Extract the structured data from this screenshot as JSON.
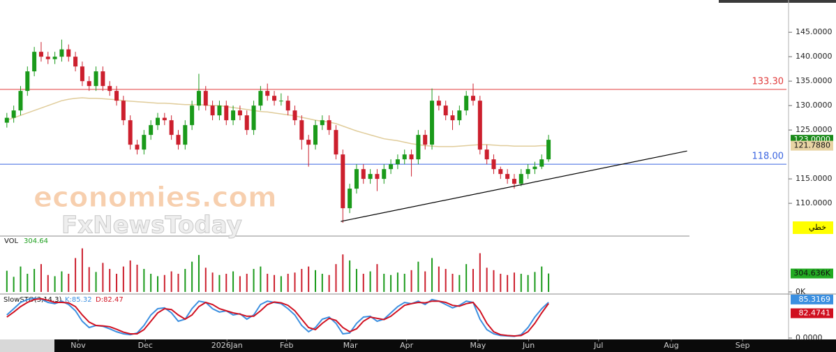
{
  "chart_data": [
    {
      "type": "candlestick",
      "x": [
        1,
        2,
        3,
        4,
        5,
        6,
        7,
        8,
        9,
        10,
        11,
        12,
        13,
        14,
        15,
        16,
        17,
        18,
        19,
        20,
        21,
        22,
        23,
        24,
        25,
        26,
        27,
        28,
        29,
        30,
        31,
        32,
        33,
        34,
        35,
        36,
        37,
        38,
        39,
        40,
        41,
        42,
        43,
        44,
        45,
        46,
        47,
        48,
        49,
        50,
        51,
        52,
        53,
        54,
        55,
        56,
        57,
        58,
        59,
        60,
        61,
        62,
        63,
        64,
        65,
        66,
        67,
        68,
        69,
        70,
        71,
        72,
        73,
        74,
        75,
        76,
        77,
        78,
        79,
        80
      ],
      "open": [
        126.5,
        127.5,
        129,
        133,
        137,
        141,
        140,
        139.5,
        140,
        141.5,
        140,
        138,
        135,
        134,
        137,
        134,
        133,
        131,
        127,
        122,
        121,
        124,
        126,
        127.5,
        127,
        124,
        122,
        126,
        130,
        133,
        130,
        128,
        130,
        127,
        129,
        128,
        125,
        130,
        133,
        132,
        131,
        131,
        129,
        127,
        123,
        122,
        126,
        127,
        125,
        120,
        109,
        113,
        117,
        115,
        116,
        115,
        117,
        118,
        119,
        120,
        119,
        124,
        122,
        131,
        130,
        128,
        127,
        129,
        132,
        131,
        121,
        119,
        117,
        116,
        115,
        114,
        116,
        117,
        117.5,
        119
      ],
      "high": [
        128.5,
        130,
        134,
        138,
        142,
        143,
        141,
        141,
        143.5,
        142.5,
        141,
        139,
        136,
        138,
        138,
        135,
        134,
        132,
        128,
        123,
        125,
        127,
        128.5,
        128.5,
        128,
        125,
        127,
        131,
        136.5,
        134,
        131,
        131,
        131,
        130,
        130,
        129,
        131,
        134,
        134.5,
        133,
        132.5,
        132,
        130,
        128,
        124,
        127,
        128,
        128,
        126,
        121,
        114,
        118,
        118,
        117,
        117,
        118,
        119,
        120,
        121,
        121,
        125,
        125,
        133.5,
        132,
        131,
        129,
        130,
        133,
        134.5,
        132,
        122,
        120,
        117.5,
        117,
        116,
        117,
        118,
        118.5,
        120,
        124
      ],
      "low": [
        125.5,
        126.5,
        128,
        132,
        136,
        139,
        138.5,
        138.5,
        139,
        139,
        137,
        134,
        133,
        133,
        133,
        132,
        130,
        126,
        121,
        120,
        120,
        123,
        125,
        126,
        123,
        121,
        121,
        125,
        129,
        129,
        127,
        127,
        126,
        126,
        127,
        124,
        124,
        129,
        131,
        130,
        130,
        128,
        126,
        121,
        117.5,
        121,
        125,
        124,
        119,
        106,
        108,
        112,
        114,
        114,
        112.5,
        114,
        116,
        117,
        118,
        115.5,
        118,
        121,
        121,
        129,
        127,
        125,
        126,
        128,
        130,
        120,
        118,
        116,
        115,
        114,
        113,
        113.5,
        115,
        116,
        117,
        118.5
      ],
      "close": [
        127.5,
        129,
        133,
        137,
        141,
        140,
        139.5,
        140,
        141.5,
        140,
        138,
        135,
        134,
        137,
        134,
        133,
        131,
        127,
        122,
        121,
        124,
        126,
        127.5,
        127,
        124,
        122,
        126,
        130,
        133,
        130,
        128,
        130,
        127,
        129,
        128,
        125,
        130,
        133,
        132,
        131,
        131,
        129,
        127,
        123,
        122,
        126,
        127,
        125,
        120,
        109,
        113,
        117,
        115,
        116,
        115,
        117,
        118,
        119,
        120,
        119,
        124,
        122,
        131,
        130,
        128,
        127,
        129,
        132,
        131,
        121,
        119,
        117,
        116,
        115,
        114,
        116,
        117,
        117.5,
        119,
        123
      ],
      "up_color": "#1a9a1a",
      "down_color": "#cc1f2d",
      "xlim": [
        0,
        115
      ],
      "xticks": [
        {
          "value": 11.4,
          "label": "Nov"
        },
        {
          "value": 21.2,
          "label": "Dec"
        },
        {
          "value": 33.1,
          "label": "2026Jan"
        },
        {
          "value": 41.8,
          "label": "Feb"
        },
        {
          "value": 51.1,
          "label": "Mar"
        },
        {
          "value": 59.3,
          "label": "Apr"
        },
        {
          "value": 69.7,
          "label": "May"
        },
        {
          "value": 77.1,
          "label": "Jun"
        },
        {
          "value": 87.3,
          "label": "Jul"
        },
        {
          "value": 97.9,
          "label": "Aug"
        },
        {
          "value": 108.3,
          "label": "Sep"
        }
      ],
      "ylim": [
        103.3,
        151.6
      ],
      "yticks": [
        {
          "value": 110,
          "label": "110.0000"
        },
        {
          "value": 115,
          "label": "115.0000"
        },
        {
          "value": 125,
          "label": "125.0000"
        },
        {
          "value": 130,
          "label": "130.0000"
        },
        {
          "value": 135,
          "label": "135.0000"
        },
        {
          "value": 140,
          "label": "140.0000"
        },
        {
          "value": 145,
          "label": "145.0000"
        }
      ],
      "moving_average": {
        "color": "#e0cc9a",
        "values": [
          127,
          127.5,
          128,
          128.5,
          129,
          129.5,
          130,
          130.5,
          131,
          131.3,
          131.5,
          131.6,
          131.5,
          131.5,
          131.4,
          131.3,
          131.2,
          131,
          130.9,
          130.8,
          130.7,
          130.6,
          130.5,
          130.5,
          130.4,
          130.3,
          130.2,
          130.2,
          130.2,
          130.1,
          130,
          130,
          129.8,
          129.6,
          129.4,
          129.2,
          129,
          128.8,
          128.7,
          128.5,
          128.3,
          128.1,
          127.9,
          127.6,
          127.3,
          127,
          126.8,
          126.6,
          126.3,
          125.8,
          125.3,
          124.8,
          124.4,
          124,
          123.6,
          123.2,
          123,
          122.8,
          122.5,
          122.2,
          122,
          121.8,
          121.7,
          121.6,
          121.6,
          121.6,
          121.7,
          121.8,
          121.9,
          122,
          122,
          121.9,
          121.8,
          121.8,
          121.7,
          121.7,
          121.7,
          121.7,
          121.8,
          121.788
        ],
        "last_label": {
          "value": 121.788,
          "label": "121.7880"
        }
      },
      "last_price_label": {
        "value": 123,
        "label": "123.0000"
      },
      "levels": [
        {
          "value": 133.3,
          "label": "133.30",
          "color": "#e03a3a"
        },
        {
          "value": 118,
          "label": "118.00",
          "color": "#3a64e0"
        }
      ],
      "trendline": {
        "x": [
          49.7,
          100.2
        ],
        "y": [
          106.3,
          120.7
        ]
      },
      "watermarks": [
        "economies.com",
        "FxNewsToday"
      ],
      "badge": "خطي"
    },
    {
      "type": "bar",
      "title": "VOL",
      "legend_value": 304.64,
      "values": [
        350,
        250,
        420,
        300,
        380,
        460,
        280,
        260,
        340,
        300,
        560,
        720,
        410,
        330,
        480,
        380,
        300,
        420,
        520,
        450,
        380,
        300,
        260,
        280,
        340,
        300,
        380,
        500,
        610,
        400,
        320,
        280,
        300,
        340,
        260,
        300,
        380,
        420,
        300,
        280,
        260,
        300,
        320,
        380,
        420,
        360,
        300,
        280,
        460,
        620,
        520,
        380,
        300,
        340,
        460,
        300,
        280,
        320,
        300,
        360,
        500,
        340,
        560,
        420,
        380,
        300,
        280,
        460,
        380,
        640,
        400,
        360,
        300,
        280,
        320,
        300,
        280,
        330,
        420,
        304.636
      ],
      "ylim": [
        0,
        900
      ],
      "yticks": [
        {
          "value": 0,
          "label": "0K"
        }
      ],
      "last_label": {
        "value": 304.636,
        "label": "304.636K"
      }
    },
    {
      "type": "line",
      "title": "SlowSTO(3,14,3)",
      "series": [
        {
          "name": "K:85.32",
          "color": "#3b8fe0",
          "values": [
            55,
            70,
            85,
            92,
            95,
            93,
            85,
            82,
            88,
            80,
            65,
            40,
            25,
            30,
            28,
            22,
            15,
            10,
            8,
            12,
            30,
            55,
            70,
            72,
            60,
            40,
            45,
            70,
            88,
            85,
            70,
            62,
            65,
            55,
            58,
            45,
            55,
            80,
            88,
            85,
            82,
            70,
            55,
            30,
            15,
            25,
            45,
            50,
            35,
            10,
            12,
            35,
            50,
            52,
            40,
            45,
            60,
            75,
            85,
            82,
            88,
            80,
            92,
            88,
            80,
            72,
            78,
            88,
            85,
            45,
            20,
            10,
            6,
            5,
            4,
            8,
            25,
            50,
            70,
            85.3169
          ],
          "last_label": {
            "value": 85.3169,
            "label": "85.3169"
          }
        },
        {
          "name": "D:82.47",
          "color": "#d01020",
          "values": [
            50,
            62,
            75,
            85,
            92,
            94,
            90,
            85,
            85,
            84,
            75,
            55,
            38,
            30,
            29,
            27,
            21,
            14,
            10,
            10,
            20,
            40,
            60,
            70,
            68,
            55,
            45,
            55,
            75,
            85,
            80,
            70,
            65,
            60,
            57,
            52,
            52,
            65,
            80,
            86,
            84,
            78,
            65,
            45,
            25,
            20,
            35,
            47,
            42,
            25,
            15,
            22,
            40,
            50,
            47,
            44,
            52,
            65,
            78,
            82,
            85,
            84,
            88,
            88,
            85,
            78,
            76,
            82,
            85,
            65,
            35,
            15,
            8,
            6,
            5,
            6,
            15,
            35,
            60,
            82.4741
          ],
          "last_label": {
            "value": 82.4741,
            "label": "82.4741"
          }
        }
      ],
      "ylim": [
        0,
        100
      ],
      "yticks": [
        {
          "value": 0,
          "label": "0.0000"
        }
      ]
    }
  ]
}
